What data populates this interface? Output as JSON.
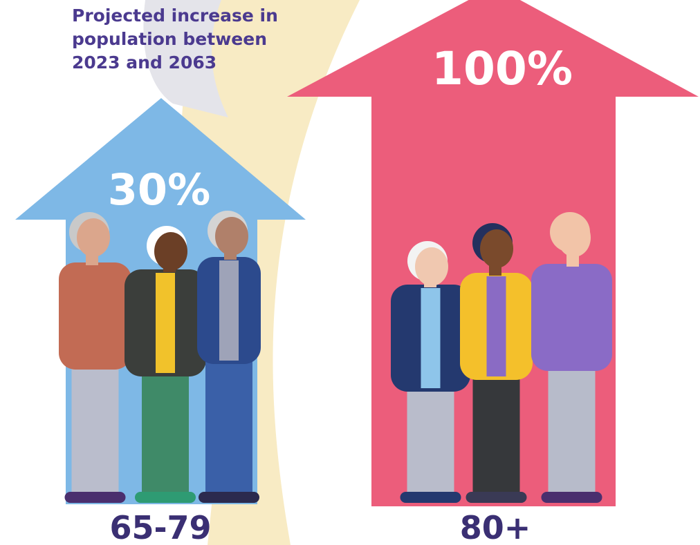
{
  "title": "Projected increase in population between 2023 and 2063",
  "groups": [
    {
      "value": "30%",
      "label": "65-79"
    },
    {
      "value": "100%",
      "label": "80+"
    }
  ]
}
